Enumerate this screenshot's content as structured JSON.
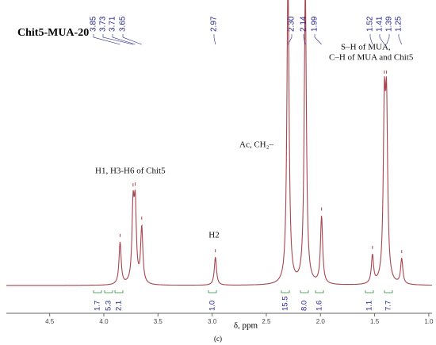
{
  "chart_data": {
    "type": "spectrum",
    "title": "Chit5-MUA-20",
    "xlabel": "δ, ppm",
    "caption": "(c)",
    "xlim": [
      4.9,
      0.97
    ],
    "ylim": [
      0,
      100
    ],
    "xticks": [
      4.5,
      {
        "value": 4,
        "label": "4.0"
      },
      3.5,
      {
        "value": 3,
        "label": "3.0"
      },
      2.5,
      {
        "value": 2,
        "label": "2.0"
      },
      1.5,
      {
        "value": 1,
        "label": "1.0"
      }
    ],
    "peaks": {
      "color": "#a8454f",
      "x": [
        3.85,
        3.73,
        3.71,
        3.65,
        2.97,
        {
          "value": 2.3,
          "label": "2.30"
        },
        2.14,
        1.99,
        1.52,
        1.41,
        1.39,
        1.25
      ],
      "values": [
        15,
        26,
        26,
        20,
        10,
        110,
        105,
        24,
        10,
        58,
        58,
        9
      ]
    },
    "integrals": {
      "color": "#2e8b3e",
      "values": [
        1.7,
        5.3,
        2.1,
        {
          "value": 1,
          "label": "1.0"
        },
        15.5,
        {
          "value": 8,
          "label": "8.0"
        },
        1.6,
        1.1,
        7.7
      ]
    },
    "annotations": [
      "S–H of MUA,",
      "C–H of MUA and Chit5",
      "Ac, CH₂–",
      "H1, H3-H6 of Chit5",
      "H2"
    ]
  }
}
